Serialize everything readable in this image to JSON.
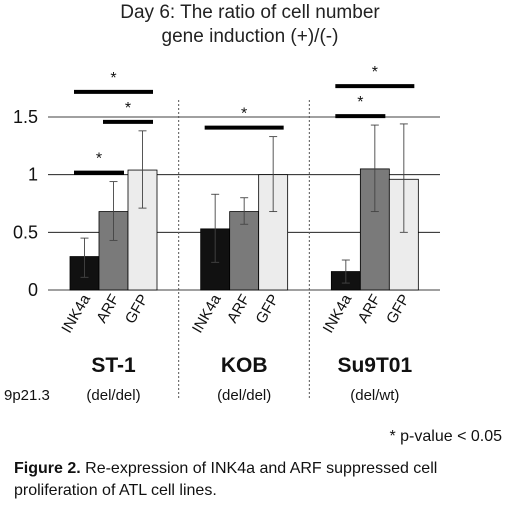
{
  "title_line1": "Day 6: The ratio of cell number",
  "title_line2": "gene induction (+)/(-)",
  "footnote": "* p-value < 0.05",
  "caption": {
    "label": "Figure 2.",
    "text": " Re-expression of INK4a and ARF suppressed cell proliferation of ATL cell lines."
  },
  "locus_label": "9p21.3",
  "colors": {
    "INK4a": "#111111",
    "ARF": "#7a7a7a",
    "GFP": "#ececec",
    "bar_stroke": "#000000",
    "grid": "#000000"
  },
  "chart_data": {
    "type": "bar",
    "title": "Day 6: The ratio of cell number gene induction (+)/(-)",
    "ylim": [
      0,
      1.5
    ],
    "yticks": [
      0,
      0.5,
      1,
      1.5
    ],
    "ytick_labels": [
      "0",
      "0.5",
      "1",
      "1.5"
    ],
    "grid": true,
    "categories": [
      "INK4a",
      "ARF",
      "GFP"
    ],
    "groups": [
      {
        "name": "ST-1",
        "status": "(del/del)",
        "values": [
          0.29,
          0.68,
          1.04
        ],
        "err_low": [
          0.11,
          0.43,
          0.71
        ],
        "err_high": [
          0.45,
          0.94,
          1.38
        ],
        "significance": [
          {
            "from": 0,
            "to": 1,
            "label": "*"
          },
          {
            "from": 1,
            "to": 2,
            "label": "*"
          },
          {
            "from": 0,
            "to": 2,
            "label": "*"
          }
        ]
      },
      {
        "name": "KOB",
        "status": "(del/del)",
        "values": [
          0.53,
          0.68,
          1.0
        ],
        "err_low": [
          0.24,
          0.57,
          0.68
        ],
        "err_high": [
          0.83,
          0.8,
          1.33
        ],
        "significance": [
          {
            "from": 0,
            "to": 2,
            "label": "*"
          }
        ]
      },
      {
        "name": "Su9T01",
        "status": "(del/wt)",
        "values": [
          0.16,
          1.05,
          0.96
        ],
        "err_low": [
          0.06,
          0.68,
          0.5
        ],
        "err_high": [
          0.26,
          1.43,
          1.44
        ],
        "significance": [
          {
            "from": 0,
            "to": 1,
            "label": "*"
          },
          {
            "from": 0,
            "to": 2,
            "label": "*"
          }
        ]
      }
    ]
  }
}
